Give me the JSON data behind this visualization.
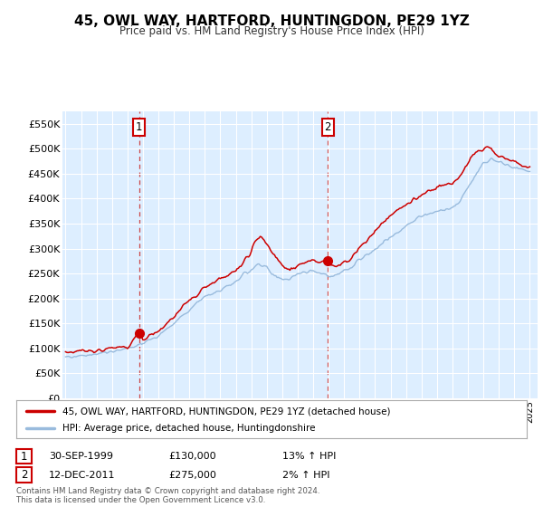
{
  "title": "45, OWL WAY, HARTFORD, HUNTINGDON, PE29 1YZ",
  "subtitle": "Price paid vs. HM Land Registry's House Price Index (HPI)",
  "plot_bg_color": "#ddeeff",
  "fig_bg_color": "#ffffff",
  "ylim": [
    0,
    575000
  ],
  "yticks": [
    0,
    50000,
    100000,
    150000,
    200000,
    250000,
    300000,
    350000,
    400000,
    450000,
    500000,
    550000
  ],
  "ytick_labels": [
    "£0",
    "£50K",
    "£100K",
    "£150K",
    "£200K",
    "£250K",
    "£300K",
    "£350K",
    "£400K",
    "£450K",
    "£500K",
    "£550K"
  ],
  "year_start": 1995,
  "year_end": 2025,
  "sale1_year": 1999.75,
  "sale1_price": 130000,
  "sale2_year": 2011.95,
  "sale2_price": 275000,
  "red_line_color": "#cc0000",
  "blue_line_color": "#99bbdd",
  "dashed_line_color": "#cc4444",
  "legend_label_red": "45, OWL WAY, HARTFORD, HUNTINGDON, PE29 1YZ (detached house)",
  "legend_label_blue": "HPI: Average price, detached house, Huntingdonshire",
  "table_row1": [
    "1",
    "30-SEP-1999",
    "£130,000",
    "13% ↑ HPI"
  ],
  "table_row2": [
    "2",
    "12-DEC-2011",
    "£275,000",
    "2% ↑ HPI"
  ],
  "footer": "Contains HM Land Registry data © Crown copyright and database right 2024.\nThis data is licensed under the Open Government Licence v3.0."
}
